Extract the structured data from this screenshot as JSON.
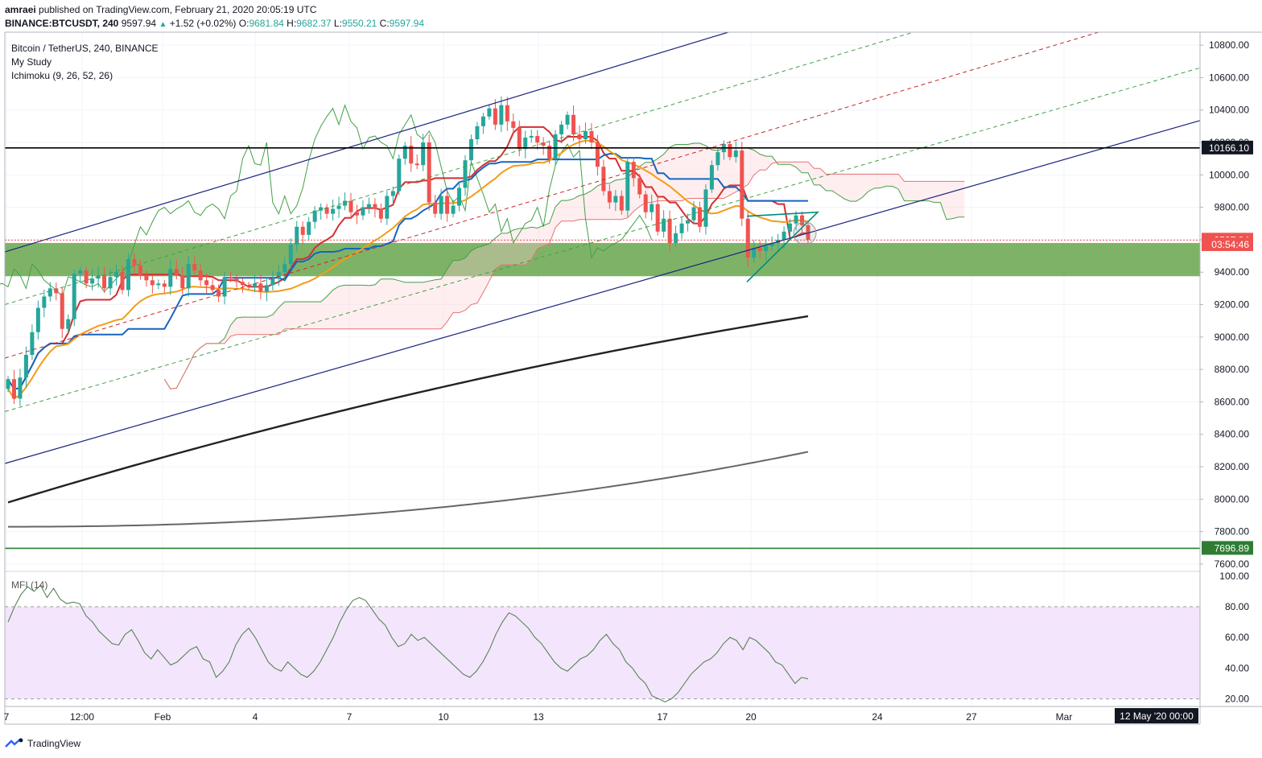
{
  "header": {
    "publisher": "amraei",
    "published_text": " published on TradingView.com, February 21, 2020 20:05:19 UTC",
    "symbol_line": "BINANCE:BTCUSDT, 240",
    "price": "9597.94",
    "change": "+1.52 (+0.02%)",
    "change_icon": "triangle-up-icon",
    "o_label": "O:",
    "o_val": "9681.84",
    "h_label": "H:",
    "h_val": "9682.37",
    "l_label": "L:",
    "l_val": "9550.21",
    "c_label": "C:",
    "c_val": "9597.94"
  },
  "legend": {
    "title": "Bitcoin / TetherUS, 240, BINANCE",
    "study1": "My Study",
    "study2": "Ichimoku (9, 26, 52, 26)"
  },
  "footer": {
    "brand": "TradingView",
    "logo_icon": "tradingview-logo-icon"
  },
  "colors": {
    "up": "#26a69a",
    "down": "#ef5350",
    "conversion": "#d32f2f",
    "base": "#1565c0",
    "lagging": "#43a047",
    "ma_orange": "#f29d16",
    "ma_dark": "#222222",
    "ma_gray": "#666666",
    "zone": "#5a9e3c",
    "channel": "#1a237e",
    "mfi_line": "#4c7a4c",
    "mfi_band": "#f3e5fb"
  },
  "chart_data": [
    {
      "type": "candlestick",
      "title": "Bitcoin / TetherUS, 240, BINANCE",
      "ylim": [
        7560,
        10880
      ],
      "yticks": [
        "10800.00",
        "10600.00",
        "10400.00",
        "10200.00",
        "10000.00",
        "9800.00",
        "9600.00",
        "9400.00",
        "9200.00",
        "9000.00",
        "8800.00",
        "8600.00",
        "8400.00",
        "8200.00",
        "8000.00",
        "7800.00",
        "7600.00"
      ],
      "xticks": [
        "7",
        "12:00",
        "Feb",
        "4",
        "7",
        "10",
        "13",
        "17",
        "20",
        "24",
        "27",
        "Mar"
      ],
      "price_labels": [
        {
          "value": 10166.1,
          "text": "10166.10",
          "style": "dark"
        },
        {
          "value": 9597.94,
          "text": "9597.94",
          "style": "red"
        },
        {
          "value": 9570,
          "text": "03:54:46",
          "style": "red"
        },
        {
          "value": 7696.89,
          "text": "7696.89",
          "style": "green"
        }
      ],
      "horizontal_lines": [
        {
          "value": 10166.1,
          "color": "#000000"
        },
        {
          "value": 7696.89,
          "color": "#2e7d32"
        }
      ],
      "zone": {
        "from": 9375,
        "to": 9580
      },
      "time_label": "12 May '20   00:00",
      "series_close": [
        8740,
        8620,
        8750,
        8890,
        9030,
        9180,
        9250,
        9300,
        9270,
        9050,
        9110,
        9390,
        9410,
        9330,
        9360,
        9380,
        9300,
        9370,
        9400,
        9290,
        9480,
        9440,
        9380,
        9350,
        9320,
        9330,
        9310,
        9420,
        9380,
        9300,
        9450,
        9410,
        9350,
        9320,
        9290,
        9250,
        9370,
        9360,
        9340,
        9320,
        9310,
        9330,
        9280,
        9320,
        9360,
        9400,
        9450,
        9570,
        9680,
        9630,
        9710,
        9780,
        9800,
        9760,
        9790,
        9810,
        9840,
        9770,
        9750,
        9800,
        9820,
        9790,
        9730,
        9870,
        9900,
        10100,
        10180,
        10070,
        10060,
        10200,
        9830,
        9760,
        9870,
        9760,
        9810,
        9920,
        10090,
        10220,
        10300,
        10360,
        10410,
        10310,
        10430,
        10330,
        10290,
        10160,
        10230,
        10240,
        10200,
        10180,
        10100,
        10250,
        10310,
        10370,
        10250,
        10220,
        10270,
        10200,
        10050,
        9900,
        9830,
        9870,
        9780,
        10080,
        9980,
        9880,
        9770,
        9820,
        9650,
        9730,
        9580,
        9640,
        9700,
        9720,
        9800,
        9680,
        9910,
        10060,
        10140,
        10190,
        10110,
        10150,
        9730,
        9490,
        9550,
        9530,
        9560,
        9580,
        9600,
        9650,
        9700,
        9750,
        9690,
        9600
      ]
    },
    {
      "type": "line",
      "title": "MFI (14)",
      "ylim": [
        15,
        102
      ],
      "yticks": [
        "100.00",
        "80.00",
        "60.00",
        "40.00",
        "20.00"
      ],
      "band": [
        20,
        80
      ],
      "values": [
        70,
        80,
        88,
        93,
        90,
        94,
        86,
        92,
        85,
        82,
        83,
        82,
        74,
        70,
        64,
        60,
        56,
        55,
        62,
        65,
        58,
        50,
        46,
        52,
        47,
        42,
        44,
        48,
        52,
        54,
        46,
        44,
        34,
        38,
        44,
        55,
        62,
        66,
        60,
        52,
        44,
        40,
        38,
        44,
        40,
        36,
        34,
        38,
        44,
        52,
        60,
        70,
        78,
        84,
        86,
        84,
        78,
        72,
        68,
        60,
        54,
        56,
        62,
        58,
        60,
        56,
        52,
        48,
        44,
        40,
        36,
        34,
        38,
        44,
        52,
        62,
        70,
        76,
        74,
        70,
        66,
        60,
        56,
        50,
        44,
        40,
        38,
        42,
        46,
        48,
        52,
        58,
        62,
        56,
        52,
        44,
        40,
        34,
        30,
        22,
        20,
        18,
        20,
        24,
        30,
        36,
        40,
        44,
        46,
        50,
        56,
        60,
        58,
        52,
        60,
        58,
        54,
        50,
        44,
        42,
        36,
        30,
        34,
        33
      ]
    }
  ]
}
